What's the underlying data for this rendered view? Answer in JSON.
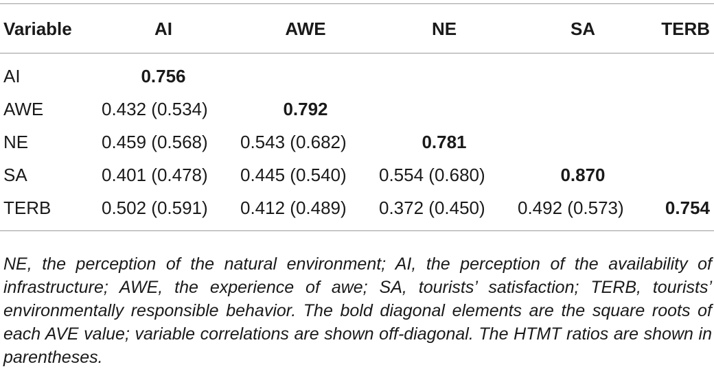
{
  "table": {
    "headers": [
      "Variable",
      "AI",
      "AWE",
      "NE",
      "SA",
      "TERB"
    ],
    "rows": [
      {
        "label": "AI",
        "cells": [
          "0.756",
          "",
          "",
          "",
          ""
        ]
      },
      {
        "label": "AWE",
        "cells": [
          "0.432 (0.534)",
          "0.792",
          "",
          "",
          ""
        ]
      },
      {
        "label": "NE",
        "cells": [
          "0.459 (0.568)",
          "0.543 (0.682)",
          "0.781",
          "",
          ""
        ]
      },
      {
        "label": "SA",
        "cells": [
          "0.401 (0.478)",
          "0.445 (0.540)",
          "0.554 (0.680)",
          "0.870",
          ""
        ]
      },
      {
        "label": "TERB",
        "cells": [
          "0.502 (0.591)",
          "0.412 (0.489)",
          "0.372 (0.450)",
          "0.492 (0.573)",
          "0.754"
        ]
      }
    ]
  },
  "footnote": "NE, the perception of the natural environment; AI, the perception of the availability of infrastructure; AWE, the experience of awe; SA, tourists’ satisfaction; TERB, tourists’ environmentally responsible behavior. The bold diagonal elements are the square roots of each AVE value; variable correlations are shown off-diagonal. The HTMT ratios are shown in parentheses."
}
